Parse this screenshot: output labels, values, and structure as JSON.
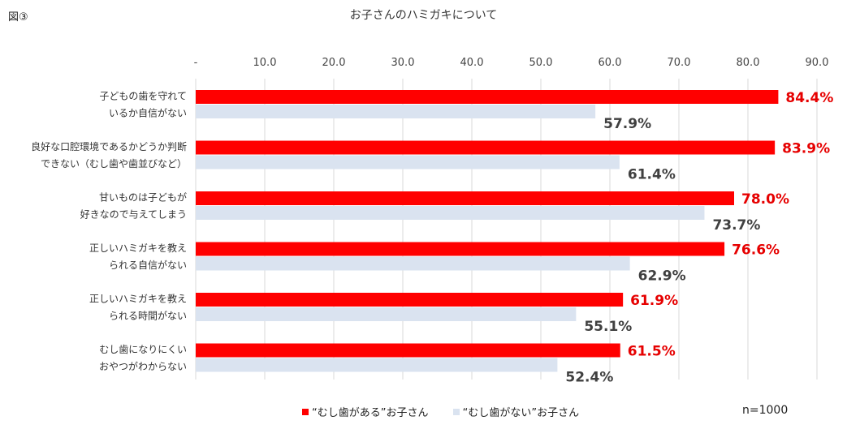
{
  "figure_label": "図③",
  "sample_size": "n=1000",
  "colors": {
    "series1": "#ff0000",
    "series2": "#dae3f0",
    "label1": "#e60000",
    "label2": "#404040",
    "grid": "#d9d9d9"
  },
  "chart_data": {
    "type": "bar",
    "orientation": "horizontal",
    "title": "お子さんのハミガキについて",
    "x_ticks": [
      "-",
      "10.0",
      "20.0",
      "30.0",
      "40.0",
      "50.0",
      "60.0",
      "70.0",
      "80.0",
      "90.0"
    ],
    "xlim": [
      0,
      90
    ],
    "grid": true,
    "legend_position": "bottom",
    "categories": [
      [
        "子どもの歯を守れて",
        "いるか自信がない"
      ],
      [
        "良好な口腔環境であるかどうか判断",
        "できない（むし歯や歯並びなど）"
      ],
      [
        "甘いものは子どもが",
        "好きなので与えてしまう"
      ],
      [
        "正しいハミガキを教え",
        "られる自信がない"
      ],
      [
        "正しいハミガキを教え",
        "られる時間がない"
      ],
      [
        "むし歯になりにくい",
        "おやつがわからない"
      ]
    ],
    "series": [
      {
        "name": "“むし歯がある”お子さん",
        "values": [
          84.4,
          83.9,
          78.0,
          76.6,
          61.9,
          61.5
        ],
        "labels": [
          "84.4%",
          "83.9%",
          "78.0%",
          "76.6%",
          "61.9%",
          "61.5%"
        ]
      },
      {
        "name": "“むし歯がない”お子さん",
        "values": [
          57.9,
          61.4,
          73.7,
          62.9,
          55.1,
          52.4
        ],
        "labels": [
          "57.9%",
          "61.4%",
          "73.7%",
          "62.9%",
          "55.1%",
          "52.4%"
        ]
      }
    ]
  }
}
